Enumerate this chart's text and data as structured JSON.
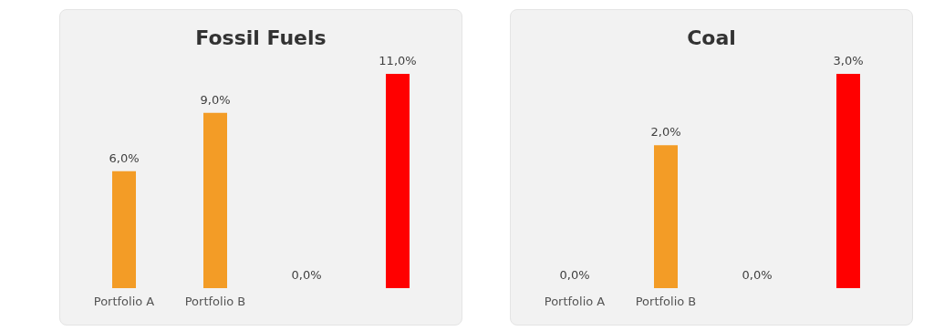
{
  "chart_data": [
    {
      "type": "bar",
      "title": "Fossil Fuels",
      "categories": [
        "Portfolio A",
        "Portfolio B",
        null,
        null
      ],
      "values": [
        6,
        9,
        0,
        11
      ],
      "colors": [
        "#f39c26",
        "#f39c26",
        "#1f8fc0",
        "#ff0000"
      ],
      "value_labels": [
        "6,0%",
        "9,0%",
        "0,0%",
        "11,0%"
      ]
    },
    {
      "type": "bar",
      "title": "Coal",
      "categories": [
        "Portfolio A",
        "Portfolio B",
        null,
        null
      ],
      "values": [
        0,
        2,
        0,
        3
      ],
      "colors": [
        "#f39c26",
        "#f39c26",
        "#1f8fc0",
        "#ff0000"
      ],
      "value_labels": [
        "0,0%",
        "2,0%",
        "0,0%",
        "3,0%"
      ]
    }
  ]
}
